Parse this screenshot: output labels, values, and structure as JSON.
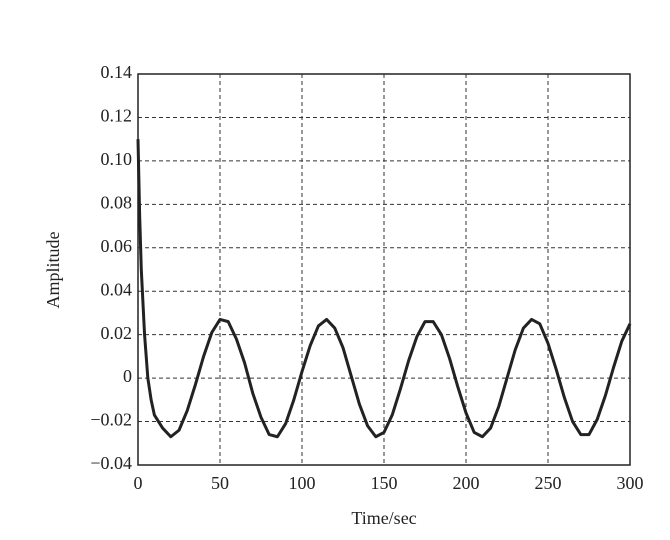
{
  "chart_data": {
    "type": "line",
    "x_label": "Time/sec",
    "y_label": "Amplitude",
    "x": [
      0,
      1,
      2,
      4,
      6,
      8,
      10,
      15,
      20,
      25,
      30,
      35,
      40,
      45,
      50,
      55,
      60,
      65,
      70,
      75,
      80,
      85,
      90,
      95,
      100,
      105,
      110,
      115,
      120,
      125,
      130,
      135,
      140,
      145,
      150,
      155,
      160,
      165,
      170,
      175,
      180,
      185,
      190,
      195,
      200,
      205,
      210,
      215,
      220,
      225,
      230,
      235,
      240,
      245,
      250,
      255,
      260,
      265,
      270,
      275,
      280,
      285,
      290,
      295,
      300
    ],
    "series": [
      {
        "color": "#222222",
        "values": [
          0.11,
          0.075,
          0.05,
          0.02,
          0.0,
          -0.01,
          -0.017,
          -0.023,
          -0.027,
          -0.024,
          -0.015,
          -0.003,
          0.01,
          0.021,
          0.027,
          0.026,
          0.018,
          0.007,
          -0.007,
          -0.018,
          -0.026,
          -0.027,
          -0.021,
          -0.01,
          0.003,
          0.015,
          0.024,
          0.027,
          0.023,
          0.014,
          0.001,
          -0.012,
          -0.022,
          -0.027,
          -0.025,
          -0.017,
          -0.005,
          0.008,
          0.019,
          0.026,
          0.026,
          0.02,
          0.009,
          -0.004,
          -0.016,
          -0.025,
          -0.027,
          -0.023,
          -0.013,
          0.0,
          0.013,
          0.023,
          0.027,
          0.025,
          0.016,
          0.004,
          -0.009,
          -0.02,
          -0.026,
          -0.026,
          -0.019,
          -0.008,
          0.005,
          0.017,
          0.025
        ]
      }
    ],
    "xlim": [
      0,
      300
    ],
    "xticks": [
      0,
      50,
      100,
      150,
      200,
      250,
      300
    ],
    "ylim": [
      -0.04,
      0.14
    ],
    "yticks": [
      {
        "value": -0.04,
        "label": "−0.04"
      },
      {
        "value": -0.02,
        "label": "−0.02"
      },
      0,
      0.02,
      0.04,
      0.06,
      0.08,
      {
        "value": 0.1,
        "label": "0.10"
      },
      0.12,
      0.14
    ],
    "grid": true
  }
}
